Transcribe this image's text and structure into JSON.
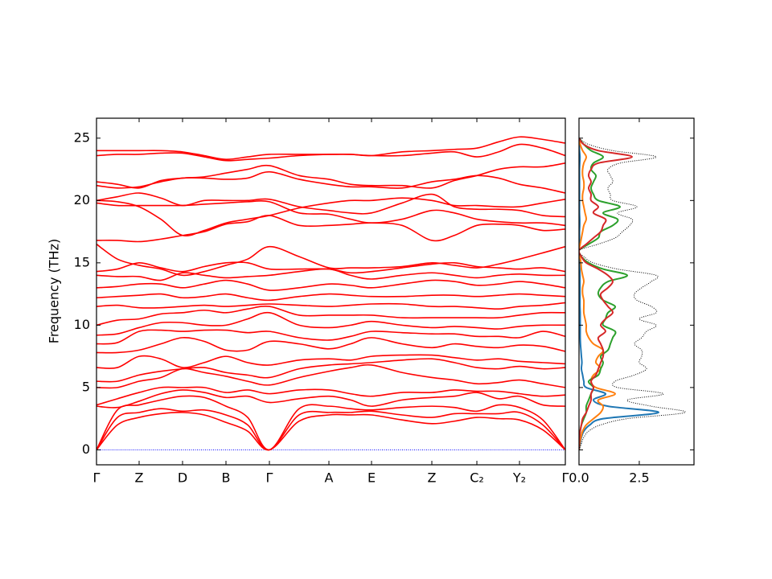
{
  "chart_data": [
    {
      "type": "line",
      "y_label": "Frequency (THz)",
      "color": "#ff0000",
      "x": [
        0,
        26,
        53,
        80,
        107,
        134,
        161,
        188,
        215,
        252,
        289,
        316,
        342,
        380,
        417,
        445,
        473,
        500,
        526,
        555,
        583
      ],
      "xlim": [
        0,
        583
      ],
      "xticks": [
        {
          "value": 0,
          "label": "Γ"
        },
        {
          "value": 53,
          "label": "Z"
        },
        {
          "value": 107,
          "label": "D"
        },
        {
          "value": 161,
          "label": "B"
        },
        {
          "value": 215,
          "label": "Γ"
        },
        {
          "value": 289,
          "label": "A"
        },
        {
          "value": 342,
          "label": "E"
        },
        {
          "value": 417,
          "label": "Z"
        },
        {
          "value": 473,
          "label": "C₂"
        },
        {
          "value": 526,
          "label": "Y₂"
        },
        {
          "value": 583,
          "label": "Γ"
        }
      ],
      "ylim": [
        -1.2,
        26.6
      ],
      "yticks": [
        0,
        5,
        10,
        15,
        20,
        25
      ],
      "series": [
        {
          "values": [
            0,
            2.0,
            2.6,
            2.9,
            3.0,
            2.8,
            2.2,
            1.5,
            0,
            2.3,
            2.8,
            2.8,
            2.8,
            2.4,
            2.1,
            2.3,
            2.6,
            2.5,
            2.4,
            1.6,
            0
          ]
        },
        {
          "values": [
            0,
            2.6,
            3.0,
            3.3,
            3.1,
            3.2,
            2.8,
            2.0,
            0,
            2.8,
            3.0,
            3.0,
            3.1,
            2.8,
            2.6,
            2.9,
            2.9,
            2.9,
            3.0,
            2.0,
            0
          ]
        },
        {
          "values": [
            0,
            3.2,
            3.6,
            4.0,
            4.3,
            4.2,
            3.5,
            2.6,
            0,
            3.3,
            3.5,
            3.3,
            3.2,
            3.4,
            3.5,
            3.4,
            3.1,
            3.6,
            3.4,
            2.4,
            0
          ]
        },
        {
          "values": [
            3.5,
            3.4,
            3.9,
            4.5,
            4.8,
            4.6,
            4.2,
            4.3,
            3.8,
            4.1,
            4.3,
            4.0,
            3.5,
            4.0,
            4.2,
            4.3,
            4.6,
            4.1,
            4.3,
            3.6,
            3.5
          ]
        },
        {
          "values": [
            3.6,
            4.1,
            4.6,
            5.0,
            5.0,
            5.0,
            4.6,
            4.8,
            4.5,
            4.8,
            4.8,
            4.5,
            4.3,
            4.6,
            4.6,
            4.8,
            4.7,
            4.7,
            4.5,
            4.3,
            4.4
          ]
        },
        {
          "values": [
            5.0,
            5.0,
            5.5,
            5.8,
            6.5,
            6.2,
            5.9,
            5.5,
            5.2,
            5.8,
            6.3,
            6.6,
            6.8,
            6.2,
            5.8,
            5.6,
            5.3,
            5.4,
            5.6,
            5.3,
            5.0
          ]
        },
        {
          "values": [
            5.5,
            5.5,
            6.0,
            6.3,
            6.5,
            6.6,
            6.2,
            6.0,
            5.8,
            6.5,
            6.8,
            6.9,
            7.0,
            7.2,
            7.3,
            7.0,
            6.6,
            6.5,
            6.7,
            6.5,
            6.6
          ]
        },
        {
          "values": [
            6.6,
            6.6,
            7.5,
            7.3,
            6.6,
            7.0,
            7.5,
            7.0,
            6.8,
            7.2,
            7.3,
            7.2,
            7.5,
            7.6,
            7.6,
            7.4,
            7.2,
            7.3,
            7.1,
            7.0,
            6.9
          ]
        },
        {
          "values": [
            7.8,
            7.8,
            8.0,
            8.5,
            9.0,
            8.7,
            8.0,
            8.0,
            8.7,
            8.5,
            8.1,
            8.5,
            9.0,
            8.5,
            8.2,
            8.5,
            8.3,
            8.2,
            8.4,
            8.3,
            7.9
          ]
        },
        {
          "values": [
            8.5,
            8.6,
            9.5,
            9.6,
            9.5,
            9.6,
            9.6,
            9.4,
            9.5,
            9.0,
            8.8,
            9.1,
            9.5,
            9.4,
            9.3,
            9.3,
            9.1,
            9.1,
            9.0,
            9.5,
            9.1
          ]
        },
        {
          "values": [
            9.2,
            9.3,
            9.8,
            10.2,
            10.2,
            10.0,
            10.0,
            10.5,
            11.0,
            10.0,
            9.8,
            10.0,
            10.3,
            10.0,
            9.8,
            9.9,
            9.8,
            9.7,
            9.9,
            10.0,
            10.0
          ]
        },
        {
          "values": [
            10.0,
            10.4,
            10.5,
            10.9,
            11.0,
            11.2,
            11.0,
            11.3,
            11.5,
            10.8,
            10.8,
            10.8,
            10.8,
            10.6,
            10.6,
            10.6,
            10.6,
            10.6,
            10.8,
            11.0,
            11.0
          ]
        },
        {
          "values": [
            11.5,
            11.6,
            11.4,
            11.4,
            11.5,
            11.6,
            11.5,
            11.6,
            11.7,
            11.6,
            11.5,
            11.6,
            11.7,
            11.7,
            11.5,
            11.5,
            11.4,
            11.3,
            11.5,
            11.6,
            11.8
          ]
        },
        {
          "values": [
            12.2,
            12.3,
            12.4,
            12.5,
            12.2,
            12.3,
            12.5,
            12.2,
            12.0,
            12.3,
            12.5,
            12.4,
            12.3,
            12.3,
            12.4,
            12.4,
            12.3,
            12.4,
            12.5,
            12.4,
            12.3
          ]
        },
        {
          "values": [
            13.0,
            13.1,
            13.3,
            13.3,
            13.0,
            13.3,
            13.6,
            13.3,
            12.8,
            13.0,
            13.3,
            13.2,
            13.0,
            13.3,
            13.6,
            13.5,
            13.2,
            13.3,
            13.5,
            13.3,
            13.0
          ]
        },
        {
          "values": [
            14.0,
            13.9,
            13.9,
            13.6,
            14.2,
            14.0,
            13.8,
            13.9,
            14.0,
            14.3,
            14.5,
            14.0,
            13.7,
            14.0,
            14.2,
            14.0,
            13.8,
            14.0,
            14.1,
            14.0,
            14.0
          ]
        },
        {
          "values": [
            14.3,
            14.5,
            15.0,
            14.6,
            14.3,
            14.7,
            15.0,
            15.0,
            14.5,
            14.5,
            14.5,
            14.2,
            14.3,
            14.6,
            14.9,
            15.0,
            14.7,
            14.6,
            14.5,
            14.6,
            14.3
          ]
        },
        {
          "values": [
            16.5,
            15.3,
            14.8,
            14.5,
            14.0,
            14.3,
            14.8,
            15.3,
            16.3,
            15.5,
            14.6,
            14.6,
            14.6,
            14.7,
            15.0,
            14.8,
            14.6,
            14.9,
            15.3,
            15.8,
            16.3
          ]
        },
        {
          "values": [
            16.8,
            16.8,
            16.7,
            16.9,
            17.2,
            17.5,
            18.1,
            18.3,
            18.8,
            18.0,
            18.0,
            18.1,
            18.2,
            18.0,
            16.8,
            17.2,
            18.0,
            18.1,
            18.0,
            17.6,
            17.7
          ]
        },
        {
          "values": [
            19.8,
            19.6,
            19.6,
            19.6,
            19.6,
            19.7,
            19.8,
            19.9,
            19.9,
            19.0,
            18.9,
            18.5,
            18.2,
            18.5,
            19.2,
            19.0,
            18.5,
            18.3,
            18.2,
            18.2,
            18.0
          ]
        },
        {
          "values": [
            20.0,
            20.3,
            20.6,
            20.2,
            19.6,
            20.0,
            20.0,
            20.0,
            20.1,
            19.5,
            19.2,
            19.0,
            19.0,
            19.8,
            20.5,
            19.5,
            19.3,
            19.3,
            19.2,
            18.8,
            18.7
          ]
        },
        {
          "values": [
            20.0,
            19.9,
            19.5,
            18.5,
            17.2,
            17.6,
            18.2,
            18.5,
            18.8,
            19.4,
            19.8,
            20.0,
            20.0,
            20.2,
            20.0,
            19.6,
            19.6,
            19.5,
            19.5,
            19.8,
            20.1
          ]
        },
        {
          "values": [
            21.2,
            21.0,
            21.1,
            21.5,
            21.8,
            21.8,
            21.7,
            21.8,
            22.3,
            21.7,
            21.3,
            21.1,
            21.1,
            21.0,
            21.5,
            21.7,
            22.0,
            21.8,
            21.3,
            21.0,
            20.6
          ]
        },
        {
          "values": [
            21.5,
            21.3,
            21.0,
            21.6,
            21.8,
            21.9,
            22.2,
            22.5,
            22.8,
            22.0,
            21.7,
            21.3,
            21.2,
            21.2,
            21.0,
            21.6,
            22.0,
            22.5,
            22.7,
            22.7,
            23.0
          ]
        },
        {
          "values": [
            23.6,
            23.7,
            23.7,
            23.8,
            23.8,
            23.5,
            23.2,
            23.3,
            23.4,
            23.6,
            23.7,
            23.7,
            23.6,
            23.6,
            23.8,
            23.9,
            23.5,
            23.9,
            24.5,
            24.2,
            23.6
          ]
        },
        {
          "values": [
            24.0,
            24.0,
            24.0,
            24.0,
            23.9,
            23.6,
            23.3,
            23.5,
            23.7,
            23.7,
            23.7,
            23.7,
            23.6,
            23.9,
            24.0,
            24.1,
            24.2,
            24.7,
            25.1,
            24.9,
            24.6
          ]
        }
      ]
    },
    {
      "type": "line",
      "orientation": "horizontal",
      "y": [
        0,
        0.5,
        1,
        1.5,
        2,
        2.5,
        3,
        3.5,
        4,
        4.5,
        5,
        5.5,
        6,
        6.5,
        7,
        7.5,
        8,
        8.5,
        9,
        9.5,
        10,
        10.5,
        11,
        11.5,
        12,
        12.5,
        13,
        13.5,
        14,
        14.5,
        15,
        15.5,
        16,
        16.5,
        17,
        17.5,
        18,
        18.5,
        19,
        19.5,
        20,
        20.5,
        21,
        21.5,
        22,
        22.5,
        23,
        23.5,
        24,
        24.5,
        25
      ],
      "xlim": [
        0,
        4.77
      ],
      "xticks": [
        {
          "value": 0,
          "label": "0.0"
        },
        2.5
      ],
      "ylim": [
        -1.2,
        26.6
      ],
      "yticks": [
        0,
        5,
        10,
        15,
        20,
        25
      ],
      "series": [
        {
          "color": "#1f77b4",
          "linestyle": "solid",
          "values": [
            0,
            0.05,
            0.1,
            0.2,
            0.45,
            1.0,
            3.3,
            1.2,
            0.6,
            1.1,
            0.3,
            0.2,
            0.15,
            0.1,
            0.12,
            0.1,
            0.08,
            0.06,
            0.05,
            0.05,
            0.05,
            0.05,
            0.05,
            0.04,
            0.04,
            0.04,
            0.04,
            0.04,
            0.04,
            0.03,
            0.02,
            0.01,
            0,
            0.01,
            0.02,
            0.02,
            0.03,
            0.03,
            0.02,
            0.02,
            0.02,
            0.02,
            0.02,
            0.02,
            0.02,
            0.02,
            0.03,
            0.04,
            0.02,
            0.01,
            0
          ]
        },
        {
          "color": "#ff7f0e",
          "linestyle": "solid",
          "values": [
            0,
            0.03,
            0.08,
            0.15,
            0.3,
            0.6,
            0.9,
            1.0,
            0.8,
            1.5,
            0.7,
            0.5,
            0.6,
            0.9,
            0.7,
            0.8,
            1.0,
            0.6,
            0.4,
            0.3,
            0.3,
            0.25,
            0.2,
            0.2,
            0.2,
            0.15,
            0.15,
            0.2,
            0.15,
            0.1,
            0.08,
            0.04,
            0,
            0.05,
            0.1,
            0.15,
            0.2,
            0.3,
            0.25,
            0.2,
            0.15,
            0.15,
            0.2,
            0.2,
            0.15,
            0.15,
            0.2,
            0.3,
            0.15,
            0.05,
            0
          ]
        },
        {
          "color": "#2ca02c",
          "linestyle": "solid",
          "values": [
            0,
            0.01,
            0.02,
            0.05,
            0.1,
            0.2,
            0.3,
            0.3,
            0.4,
            0.5,
            0.6,
            0.4,
            0.8,
            0.9,
            1.0,
            0.9,
            1.2,
            1.3,
            1.4,
            1.5,
            1.0,
            1.1,
            1.2,
            1.5,
            1.0,
            0.8,
            0.9,
            1.2,
            2.0,
            1.0,
            0.4,
            0.1,
            0,
            0.4,
            0.8,
            0.9,
            1.4,
            1.6,
            1.0,
            1.7,
            0.8,
            0.6,
            0.5,
            0.6,
            0.7,
            0.5,
            0.6,
            1.0,
            0.5,
            0.2,
            0
          ]
        },
        {
          "color": "#d62728",
          "linestyle": "solid",
          "values": [
            0,
            0.01,
            0.02,
            0.05,
            0.1,
            0.15,
            0.3,
            0.4,
            0.5,
            0.5,
            0.6,
            0.5,
            0.7,
            0.8,
            0.9,
            1.0,
            1.0,
            0.9,
            0.8,
            1.1,
            0.9,
            1.1,
            1.4,
            1.2,
            1.0,
            0.9,
            1.2,
            1.4,
            1.2,
            0.8,
            0.3,
            0.1,
            0,
            0.3,
            0.6,
            0.9,
            1.0,
            1.1,
            0.6,
            0.8,
            0.5,
            0.5,
            0.4,
            0.5,
            0.4,
            0.5,
            0.8,
            2.2,
            0.8,
            0.2,
            0
          ]
        },
        {
          "color": "#000000",
          "linestyle": "dotted",
          "values": [
            0,
            0.1,
            0.2,
            0.4,
            0.9,
            2.0,
            4.4,
            3.0,
            2.0,
            3.5,
            1.6,
            1.5,
            2.3,
            2.8,
            2.5,
            2.6,
            2.6,
            2.3,
            2.6,
            2.8,
            3.2,
            2.5,
            3.2,
            3.0,
            2.4,
            2.3,
            2.6,
            3.0,
            3.2,
            1.6,
            0.6,
            0.2,
            0,
            0.8,
            1.5,
            1.8,
            2.1,
            2.2,
            1.6,
            2.4,
            1.4,
            1.3,
            1.2,
            1.4,
            1.3,
            1.2,
            1.7,
            3.2,
            1.4,
            0.4,
            0
          ]
        }
      ]
    }
  ]
}
